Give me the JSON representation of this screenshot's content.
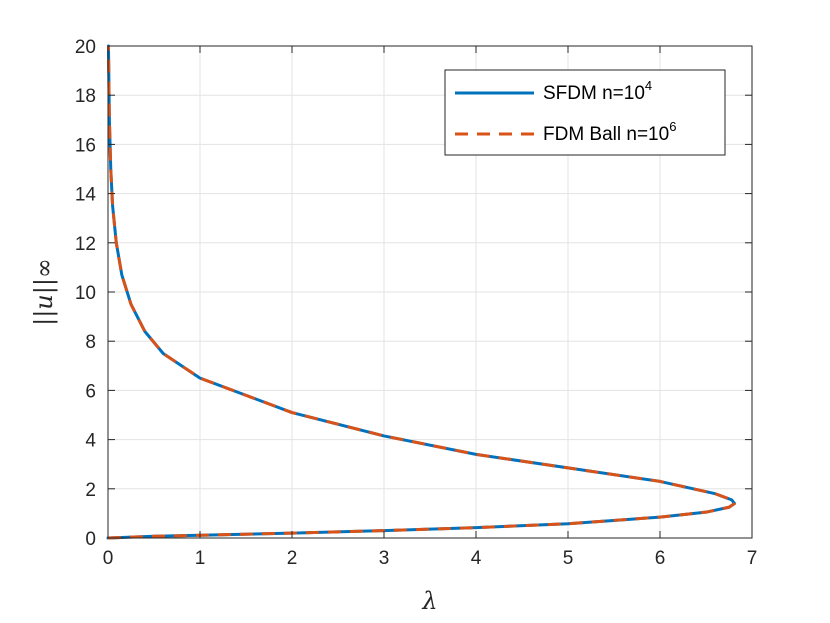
{
  "chart_data": {
    "type": "line",
    "xlabel": "λ",
    "ylabel": "||u||∞",
    "xlim": [
      0,
      7
    ],
    "ylim": [
      0,
      20
    ],
    "xticks": [
      "0",
      "1",
      "2",
      "3",
      "4",
      "5",
      "6",
      "7"
    ],
    "yticks": [
      "0",
      "2",
      "4",
      "6",
      "8",
      "10",
      "12",
      "14",
      "16",
      "18",
      "20"
    ],
    "grid": true,
    "legend_position": "top-right",
    "series": [
      {
        "name": "SFDM n=10",
        "name_exponent": "4",
        "color": "#0072BD",
        "style": "solid",
        "points": [
          [
            0,
            0
          ],
          [
            0.5,
            0.07
          ],
          [
            1,
            0.11
          ],
          [
            2,
            0.2
          ],
          [
            3,
            0.3
          ],
          [
            4,
            0.42
          ],
          [
            5,
            0.58
          ],
          [
            6,
            0.85
          ],
          [
            6.5,
            1.05
          ],
          [
            6.75,
            1.25
          ],
          [
            6.81,
            1.4
          ],
          [
            6.78,
            1.55
          ],
          [
            6.6,
            1.8
          ],
          [
            6.3,
            2.05
          ],
          [
            6,
            2.3
          ],
          [
            5,
            2.85
          ],
          [
            4,
            3.4
          ],
          [
            3,
            4.15
          ],
          [
            2,
            5.1
          ],
          [
            1,
            6.5
          ],
          [
            0.6,
            7.5
          ],
          [
            0.4,
            8.4
          ],
          [
            0.25,
            9.5
          ],
          [
            0.15,
            10.7
          ],
          [
            0.09,
            12
          ],
          [
            0.05,
            13.5
          ],
          [
            0.03,
            15
          ],
          [
            0.015,
            17
          ],
          [
            0.005,
            20
          ]
        ]
      },
      {
        "name": "FDM Ball n=10",
        "name_exponent": "6",
        "color": "#D95319",
        "style": "dashed",
        "points": [
          [
            0,
            0
          ],
          [
            0.5,
            0.07
          ],
          [
            1,
            0.11
          ],
          [
            2,
            0.2
          ],
          [
            3,
            0.3
          ],
          [
            4,
            0.42
          ],
          [
            5,
            0.58
          ],
          [
            6,
            0.85
          ],
          [
            6.5,
            1.05
          ],
          [
            6.75,
            1.25
          ],
          [
            6.81,
            1.4
          ],
          [
            6.78,
            1.55
          ],
          [
            6.6,
            1.8
          ],
          [
            6.3,
            2.05
          ],
          [
            6,
            2.3
          ],
          [
            5,
            2.85
          ],
          [
            4,
            3.4
          ],
          [
            3,
            4.15
          ],
          [
            2,
            5.1
          ],
          [
            1,
            6.5
          ],
          [
            0.6,
            7.5
          ],
          [
            0.4,
            8.4
          ],
          [
            0.25,
            9.5
          ],
          [
            0.15,
            10.7
          ],
          [
            0.09,
            12
          ],
          [
            0.05,
            13.5
          ],
          [
            0.03,
            15
          ],
          [
            0.015,
            17
          ],
          [
            0.005,
            20
          ]
        ]
      }
    ]
  }
}
